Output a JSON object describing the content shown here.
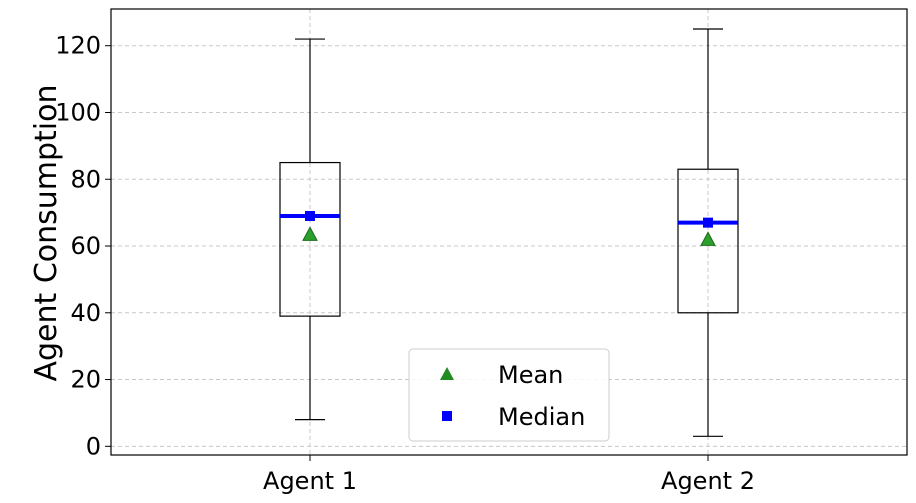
{
  "chart_data": {
    "type": "box",
    "title": "",
    "xlabel": "",
    "ylabel": "Agent Consumption",
    "ylim": [
      -2.6,
      131
    ],
    "yticks": [
      0,
      20,
      40,
      60,
      80,
      100,
      120
    ],
    "grid": true,
    "legend_placement": "lower-center",
    "categories": [
      "Agent 1",
      "Agent 2"
    ],
    "boxes": [
      {
        "category": "Agent 1",
        "whisker_low": 8,
        "q1": 39,
        "median": 69,
        "q3": 85,
        "whisker_high": 122,
        "mean": 63.5
      },
      {
        "category": "Agent 2",
        "whisker_low": 3,
        "q1": 40,
        "median": 67,
        "q3": 83,
        "whisker_high": 125,
        "mean": 62
      }
    ],
    "legend": [
      {
        "label": "Mean",
        "marker": "triangle",
        "color": "#228b22"
      },
      {
        "label": "Median",
        "marker": "square",
        "color": "#0000ff"
      }
    ],
    "colors": {
      "box": "#000000",
      "median_line": "#0000ff",
      "mean_marker": "#2ca02c",
      "mean_edge": "#1a6b1a",
      "grid": "#c8c8c8"
    }
  }
}
